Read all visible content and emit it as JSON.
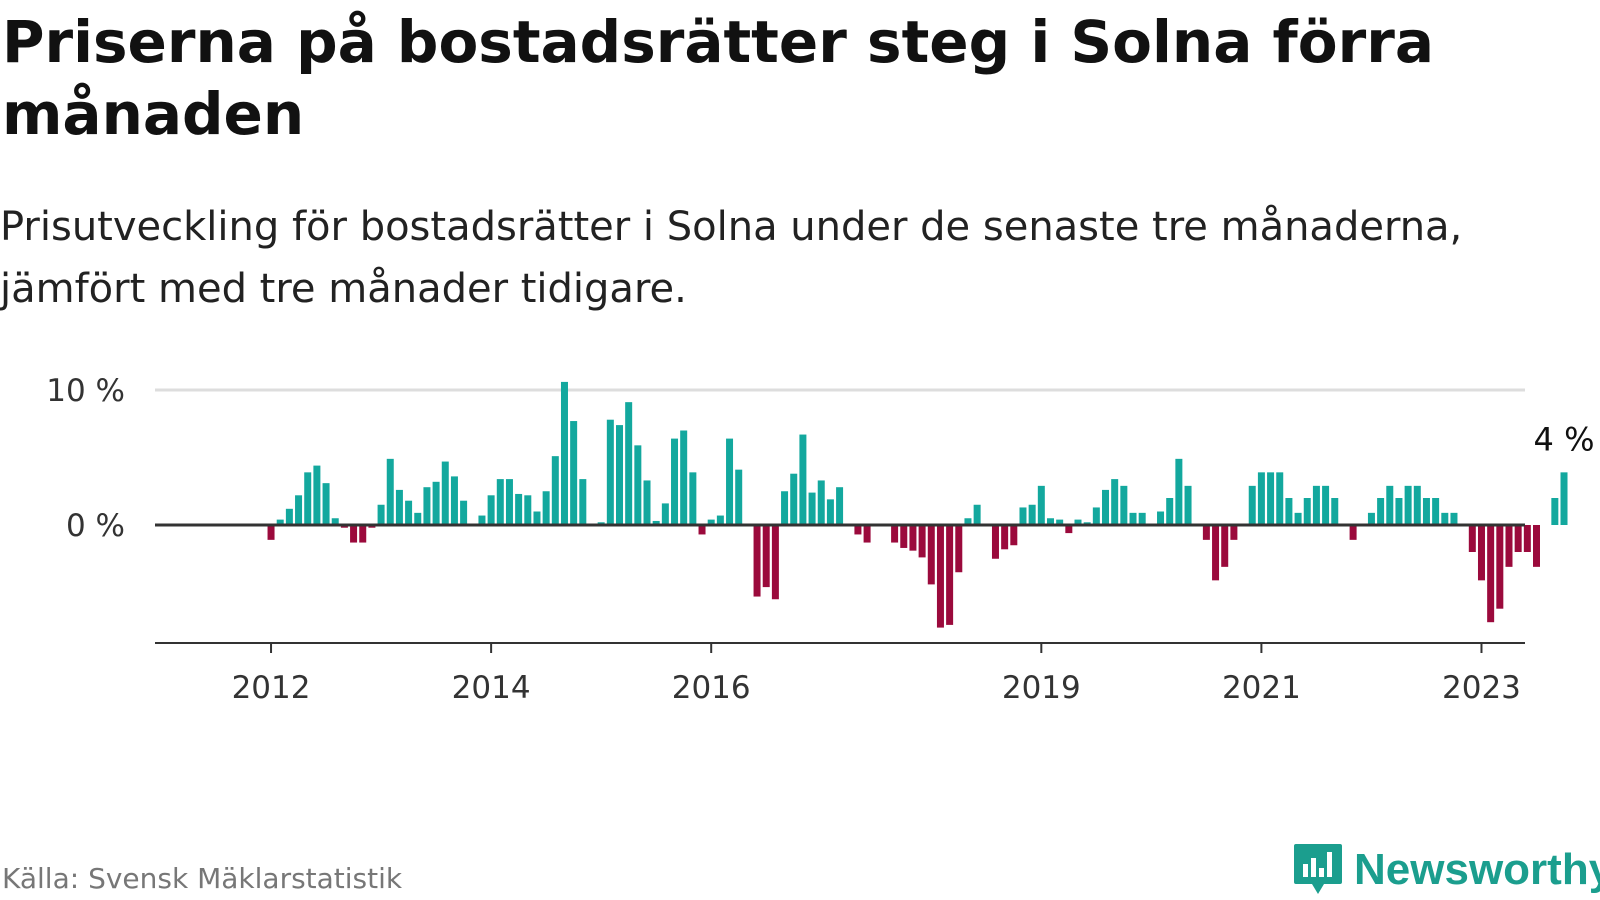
{
  "title": "Priserna på bostadsrätter steg i Solna förra månaden",
  "subtitle": "Prisutveckling för bostadsrätter i Solna under de senaste tre månaderna, jämfört med tre månader tidigare.",
  "source": "Källa: Svensk Mäklarstatistik",
  "brand": {
    "name": "Newsworthy",
    "icon": "newsworthy-logo-icon"
  },
  "colors": {
    "positive": "#13a89e",
    "negative": "#9b0a3c",
    "grid": "#dddddd",
    "axis": "#333333"
  },
  "chart_data": {
    "type": "bar",
    "title": "Priserna på bostadsrätter steg i Solna förra månaden",
    "xlabel": "",
    "ylabel": "",
    "unit": "%",
    "ylim": [
      -8.8,
      10
    ],
    "yticks": [
      {
        "value": 0,
        "label": "0 %"
      },
      {
        "value": 10,
        "label": "10 %"
      }
    ],
    "xticks": [
      {
        "index": 12,
        "label": "2012"
      },
      {
        "index": 36,
        "label": "2014"
      },
      {
        "index": 60,
        "label": "2016"
      },
      {
        "index": 96,
        "label": "2019"
      },
      {
        "index": 120,
        "label": "2021"
      },
      {
        "index": 144,
        "label": "2023"
      }
    ],
    "first_month": "2011-01",
    "last_label": "4 %",
    "values": [
      0,
      0,
      0,
      0,
      0,
      0,
      0,
      0,
      0,
      0,
      0,
      0,
      -1.1,
      0.4,
      1.2,
      2.2,
      3.9,
      4.4,
      3.1,
      0.5,
      -0.2,
      -1.3,
      -1.3,
      -0.2,
      1.5,
      4.9,
      2.6,
      1.8,
      0.9,
      2.8,
      3.2,
      4.7,
      3.6,
      1.8,
      0,
      0.7,
      2.2,
      3.4,
      3.4,
      2.3,
      2.2,
      1.0,
      2.5,
      5.1,
      10.6,
      7.7,
      3.4,
      0,
      0.2,
      7.8,
      7.4,
      9.1,
      5.9,
      3.3,
      0.3,
      1.6,
      6.4,
      7.0,
      3.9,
      -0.7,
      0.4,
      0.7,
      6.4,
      4.1,
      0,
      -5.3,
      -4.6,
      -5.5,
      2.5,
      3.8,
      6.7,
      2.4,
      3.3,
      1.9,
      2.8,
      0,
      -0.7,
      -1.3,
      0.1,
      0,
      -1.3,
      -1.7,
      -1.9,
      -2.4,
      -4.4,
      -7.6,
      -7.4,
      -3.5,
      0.5,
      1.5,
      -0.1,
      -2.5,
      -1.8,
      -1.5,
      1.3,
      1.5,
      2.9,
      0.5,
      0.4,
      -0.6,
      0.4,
      0.2,
      1.3,
      2.6,
      3.4,
      2.9,
      0.9,
      0.9,
      0,
      1.0,
      2.0,
      4.9,
      2.9,
      0,
      -1.1,
      -4.1,
      -3.1,
      -1.1,
      0,
      2.9,
      3.9,
      3.9,
      3.9,
      2.0,
      0.9,
      2.0,
      2.9,
      2.9,
      2.0,
      0,
      -1.1,
      0,
      0.9,
      2.0,
      2.9,
      2.0,
      2.9,
      2.9,
      2.0,
      2.0,
      0.9,
      0.9,
      0,
      -2.0,
      -4.1,
      -7.2,
      -6.2,
      -3.1,
      -2.0,
      -2.0,
      -3.1,
      0,
      2.0,
      3.9
    ]
  }
}
